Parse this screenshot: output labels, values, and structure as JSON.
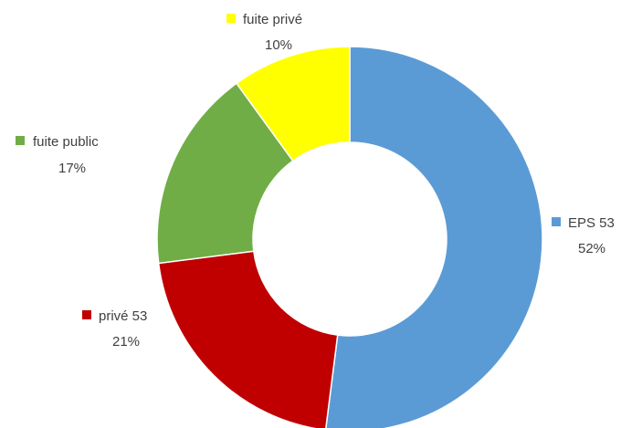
{
  "chart_data": {
    "type": "pie",
    "variant": "donut",
    "title": "",
    "slices": [
      {
        "name": "EPS 53",
        "value": 52,
        "label": "52%",
        "color": "#5b9bd5"
      },
      {
        "name": "privé 53",
        "value": 21,
        "label": "21%",
        "color": "#c00000"
      },
      {
        "name": "fuite public",
        "value": 17,
        "label": "17%",
        "color": "#70ad47"
      },
      {
        "name": "fuite privé",
        "value": 10,
        "label": "10%",
        "color": "#ffff00"
      }
    ],
    "start": "12 o'clock",
    "direction": "clockwise",
    "legend": "labels beside each slice with colored marker"
  }
}
